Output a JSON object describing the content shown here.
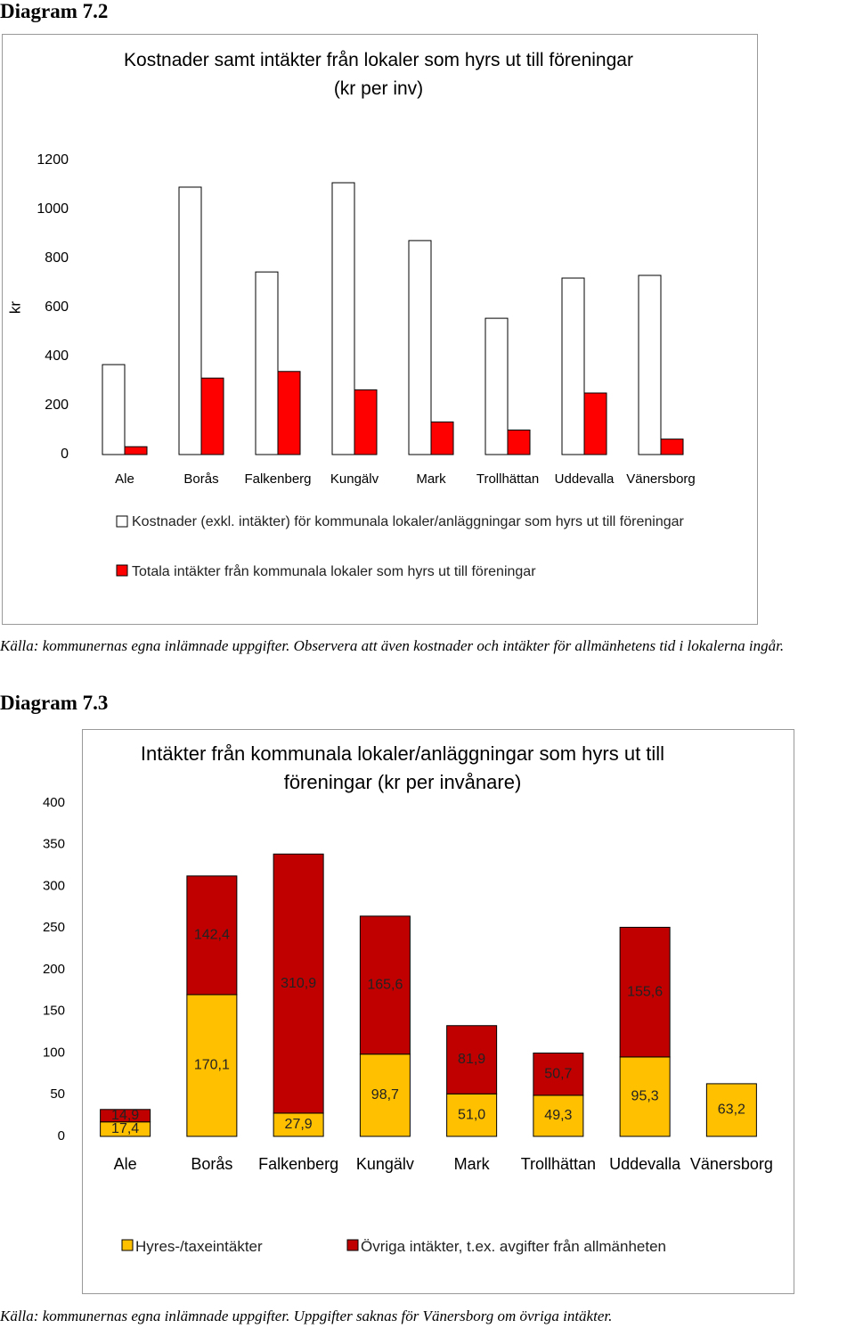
{
  "document": {
    "heading_1": "Diagram 7.2",
    "note_1": "Källa: kommunernas egna inlämnade uppgifter. Observera att även kostnader och intäkter för allmänhetens tid i lokalerna ingår.",
    "heading_2": "Diagram 7.3",
    "note_2": "Källa: kommunernas egna inlämnade uppgifter. Uppgifter saknas för Vänersborg om övriga intäkter."
  },
  "chart_data": [
    {
      "type": "bar",
      "stacked": false,
      "title": "Kostnader samt intäkter från lokaler som hyrs ut till föreningar",
      "subtitle": "(kr per inv)",
      "y_label": "kr",
      "categories": [
        "Ale",
        "Borås",
        "Falkenberg",
        "Kungälv",
        "Mark",
        "Trollhättan",
        "Uddevalla",
        "Vänersborg"
      ],
      "series": [
        {
          "name": "Kostnader (exkl. intäkter) för kommunala lokaler/anläggningar som hyrs ut till föreningar",
          "color": "#ffffff",
          "values": [
            367,
            1091,
            745,
            1109,
            873,
            556,
            720,
            731
          ]
        },
        {
          "name": "Totala intäkter från kommunala lokaler som hyrs ut till föreningar",
          "color": "#ff0000",
          "values": [
            32,
            312,
            339,
            264,
            133,
            100,
            251,
            63
          ]
        }
      ],
      "ylim": [
        0,
        1200
      ],
      "yticks": [
        0,
        200,
        400,
        600,
        800,
        1000,
        1200
      ],
      "grid": false,
      "legend": "bottom"
    },
    {
      "type": "bar",
      "stacked": true,
      "title": "Intäkter från kommunala lokaler/anläggningar som hyrs ut till föreningar (kr per invånare)",
      "categories": [
        "Ale",
        "Borås",
        "Falkenberg",
        "Kungälv",
        "Mark",
        "Trollhättan",
        "Uddevalla",
        "Vänersborg"
      ],
      "series": [
        {
          "name": "Hyres-/taxeintäkter",
          "color": "#ffc000",
          "values": [
            17.4,
            170.1,
            27.9,
            98.7,
            51.0,
            49.3,
            95.3,
            63.2
          ],
          "value_labels": [
            "17,4",
            "170,1",
            "27,9",
            "98,7",
            "51,0",
            "49,3",
            "95,3",
            "63,2"
          ]
        },
        {
          "name": "Övriga intäkter, t.ex. avgifter från allmänheten",
          "color": "#c00000",
          "values": [
            14.9,
            142.4,
            310.9,
            165.6,
            81.9,
            50.7,
            155.6,
            null
          ],
          "value_labels": [
            "14,9",
            "142,4",
            "310,9",
            "165,6",
            "81,9",
            "50,7",
            "155,6",
            null
          ]
        }
      ],
      "ylim": [
        0,
        400
      ],
      "yticks": [
        0,
        50,
        100,
        150,
        200,
        250,
        300,
        350,
        400
      ],
      "grid": false,
      "legend": "bottom"
    }
  ]
}
